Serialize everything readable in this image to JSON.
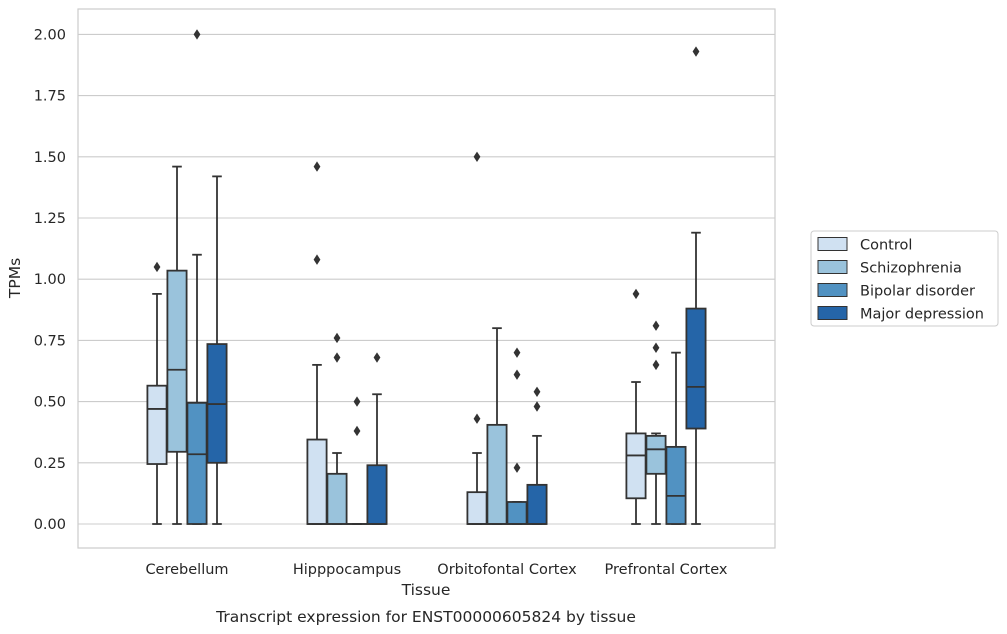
{
  "chart_data": {
    "type": "box",
    "title": "",
    "caption": "Transcript expression for ENST00000605824 by tissue",
    "xlabel": "Tissue",
    "ylabel": "TPMs",
    "ylim": [
      -0.1,
      2.1
    ],
    "yticks": [
      "0.00",
      "0.25",
      "0.50",
      "0.75",
      "1.00",
      "1.25",
      "1.50",
      "1.75",
      "2.00"
    ],
    "categories": [
      "Cerebellum",
      "Hipppocampus",
      "Orbitofontal Cortex",
      "Prefrontal Cortex"
    ],
    "grid": true,
    "legend_position": "right",
    "series": [
      {
        "name": "Control",
        "color": "#d0e1f2",
        "boxes": [
          {
            "whislo": 0.0,
            "q1": 0.245,
            "med": 0.47,
            "q3": 0.565,
            "whishi": 0.94,
            "fliers": [
              1.05
            ]
          },
          {
            "whislo": 0.0,
            "q1": 0.0,
            "med": 0.0,
            "q3": 0.345,
            "whishi": 0.65,
            "fliers": [
              1.08,
              1.46
            ]
          },
          {
            "whislo": 0.0,
            "q1": 0.0,
            "med": 0.0,
            "q3": 0.13,
            "whishi": 0.29,
            "fliers": [
              0.43,
              1.5
            ]
          },
          {
            "whislo": 0.0,
            "q1": 0.105,
            "med": 0.28,
            "q3": 0.37,
            "whishi": 0.58,
            "fliers": [
              0.94
            ]
          }
        ]
      },
      {
        "name": "Schizophrenia",
        "color": "#9ac3dc",
        "boxes": [
          {
            "whislo": 0.0,
            "q1": 0.295,
            "med": 0.63,
            "q3": 1.035,
            "whishi": 1.46,
            "fliers": []
          },
          {
            "whislo": 0.0,
            "q1": 0.0,
            "med": 0.0,
            "q3": 0.205,
            "whishi": 0.29,
            "fliers": [
              0.68,
              0.76
            ]
          },
          {
            "whislo": 0.0,
            "q1": 0.0,
            "med": 0.0,
            "q3": 0.405,
            "whishi": 0.8,
            "fliers": []
          },
          {
            "whislo": 0.0,
            "q1": 0.205,
            "med": 0.305,
            "q3": 0.36,
            "whishi": 0.37,
            "fliers": [
              0.65,
              0.72,
              0.81
            ]
          }
        ]
      },
      {
        "name": "Bipolar disorder",
        "color": "#5192c2",
        "boxes": [
          {
            "whislo": 0.0,
            "q1": 0.0,
            "med": 0.285,
            "q3": 0.495,
            "whishi": 1.1,
            "fliers": [
              2.0
            ]
          },
          {
            "whislo": 0.0,
            "q1": 0.0,
            "med": 0.0,
            "q3": 0.0,
            "whishi": 0.0,
            "fliers": [
              0.38,
              0.5
            ]
          },
          {
            "whislo": 0.0,
            "q1": 0.0,
            "med": 0.0,
            "q3": 0.09,
            "whishi": 0.09,
            "fliers": [
              0.23,
              0.61,
              0.7
            ]
          },
          {
            "whislo": 0.0,
            "q1": 0.0,
            "med": 0.115,
            "q3": 0.315,
            "whishi": 0.7,
            "fliers": []
          }
        ]
      },
      {
        "name": "Major depression",
        "color": "#2565a8",
        "boxes": [
          {
            "whislo": 0.0,
            "q1": 0.25,
            "med": 0.49,
            "q3": 0.735,
            "whishi": 1.42,
            "fliers": []
          },
          {
            "whislo": 0.0,
            "q1": 0.0,
            "med": 0.0,
            "q3": 0.24,
            "whishi": 0.53,
            "fliers": [
              0.68
            ]
          },
          {
            "whislo": 0.0,
            "q1": 0.0,
            "med": 0.0,
            "q3": 0.16,
            "whishi": 0.36,
            "fliers": [
              0.48,
              0.54
            ]
          },
          {
            "whislo": 0.0,
            "q1": 0.39,
            "med": 0.56,
            "q3": 0.88,
            "whishi": 1.19,
            "fliers": [
              1.93
            ]
          }
        ]
      }
    ]
  }
}
